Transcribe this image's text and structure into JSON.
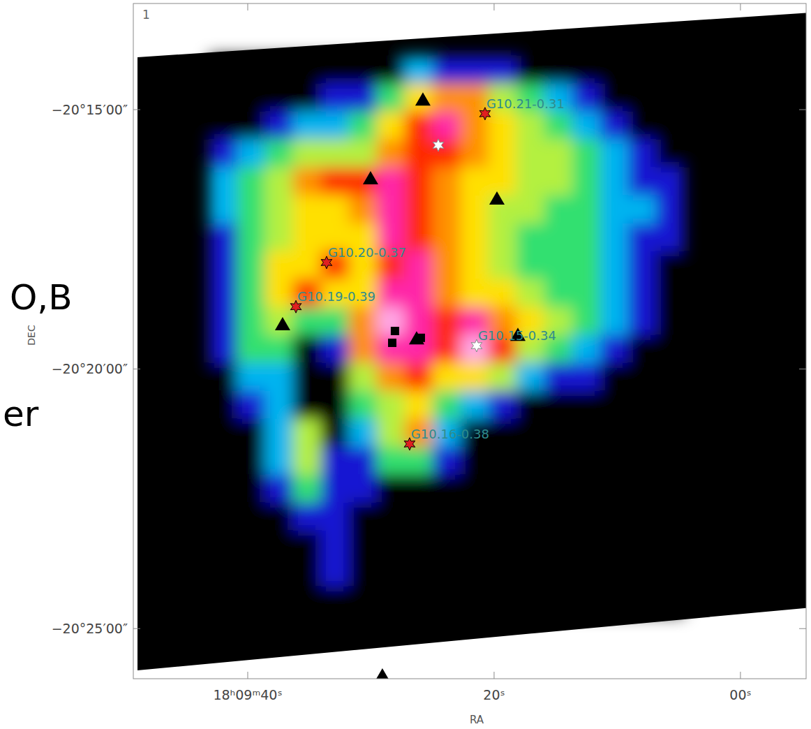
{
  "chart_data": {
    "type": "heatmap",
    "panel_label": "1",
    "slide_text": [
      "O,B",
      "er"
    ],
    "x_label": "RA",
    "y_label": "DEC",
    "xlim": [
      49.29,
      -5.33
    ],
    "xticks": [
      {
        "value": 40,
        "label": "18ʰ09ᵐ40ˢ"
      },
      {
        "value": 20,
        "label": "20ˢ"
      },
      {
        "value": 0,
        "label": "00ˢ"
      }
    ],
    "ylim": [
      -20.4328,
      -20.2159
    ],
    "yticks": [
      {
        "value": -20.25,
        "label": "−20°15′00″"
      },
      {
        "value": -20.3333,
        "label": "−20°20′00″"
      },
      {
        "value": -20.4167,
        "label": "−20°25′00″"
      }
    ],
    "cells": {
      "ra_edges": [
        43.12,
        40.85,
        38.58,
        36.32,
        34.05,
        31.78,
        29.52,
        27.25,
        24.99,
        22.72,
        20.45,
        18.19,
        15.92,
        13.65,
        11.39,
        9.12,
        6.86,
        4.59
      ],
      "dec_edges": [
        -20.2327,
        -20.2417,
        -20.2507,
        -20.2596,
        -20.2686,
        -20.2776,
        -20.2866,
        -20.2955,
        -20.3045,
        -20.3135,
        -20.3225,
        -20.3314,
        -20.3404,
        -20.3494,
        -20.3583,
        -20.3673,
        -20.3763,
        -20.3853,
        -20.3942,
        -20.4032,
        -20.4122
      ],
      "zlim": [
        0,
        9
      ],
      "values": [
        [
          0,
          0,
          0,
          0,
          0,
          0,
          0,
          2,
          1,
          1,
          1,
          0,
          0,
          0,
          0,
          0,
          0
        ],
        [
          0,
          0,
          0,
          0,
          1,
          1,
          3,
          5,
          6,
          6,
          4,
          3,
          2,
          1,
          0,
          0,
          0
        ],
        [
          0,
          0,
          1,
          2,
          2,
          3,
          5,
          7,
          8,
          6,
          5,
          4,
          3,
          2,
          1,
          0,
          0
        ],
        [
          1,
          2,
          3,
          4,
          4,
          4,
          6,
          7,
          7,
          6,
          5,
          4,
          4,
          3,
          2,
          1,
          0
        ],
        [
          2,
          3,
          4,
          6,
          7,
          7,
          8,
          7,
          6,
          5,
          5,
          4,
          4,
          3,
          2,
          1,
          1
        ],
        [
          2,
          3,
          4,
          5,
          5,
          6,
          8,
          7,
          6,
          5,
          4,
          4,
          3,
          3,
          2,
          2,
          1
        ],
        [
          1,
          3,
          4,
          5,
          5,
          5,
          8,
          7,
          6,
          5,
          4,
          3,
          3,
          3,
          2,
          1,
          1
        ],
        [
          1,
          3,
          5,
          5,
          7,
          5,
          7,
          8,
          6,
          5,
          4,
          3,
          3,
          3,
          2,
          1,
          0
        ],
        [
          1,
          3,
          5,
          7,
          5,
          5,
          8,
          8,
          6,
          5,
          5,
          4,
          3,
          3,
          2,
          1,
          0
        ],
        [
          1,
          3,
          4,
          3,
          3,
          6,
          9,
          8,
          7,
          8,
          6,
          5,
          4,
          3,
          2,
          1,
          0
        ],
        [
          1,
          3,
          3,
          0,
          1,
          6,
          8,
          8,
          7,
          9,
          7,
          4,
          3,
          2,
          1,
          0,
          0
        ],
        [
          0,
          2,
          2,
          0,
          0,
          4,
          6,
          7,
          5,
          5,
          4,
          2,
          1,
          1,
          0,
          0,
          0
        ],
        [
          0,
          1,
          2,
          0,
          0,
          3,
          4,
          5,
          3,
          2,
          1,
          0,
          0,
          0,
          0,
          0,
          0
        ],
        [
          0,
          0,
          2,
          4,
          0,
          2,
          4,
          6,
          2,
          0,
          0,
          0,
          0,
          0,
          0,
          0,
          0
        ],
        [
          0,
          0,
          2,
          4,
          1,
          1,
          3,
          3,
          1,
          0,
          0,
          0,
          0,
          0,
          0,
          0,
          0
        ],
        [
          0,
          0,
          1,
          3,
          1,
          1,
          0,
          0,
          0,
          0,
          0,
          0,
          0,
          0,
          0,
          0,
          0
        ],
        [
          0,
          0,
          0,
          1,
          1,
          0,
          0,
          0,
          0,
          0,
          0,
          0,
          0,
          0,
          0,
          0,
          0
        ],
        [
          0,
          0,
          0,
          0,
          1,
          0,
          0,
          0,
          0,
          0,
          0,
          0,
          0,
          0,
          0,
          0,
          0
        ],
        [
          0,
          0,
          0,
          0,
          1,
          0,
          0,
          0,
          0,
          0,
          0,
          0,
          0,
          0,
          0,
          0,
          0
        ],
        [
          0,
          0,
          0,
          0,
          0,
          0,
          0,
          0,
          0,
          0,
          0,
          0,
          0,
          0,
          0,
          0,
          0
        ]
      ]
    },
    "series": [
      {
        "marker": "star",
        "color": "#e02020",
        "x": [
          20.74,
          33.6,
          36.09,
          26.86
        ],
        "y": [
          -20.2513,
          -20.2991,
          -20.3133,
          -20.3574
        ],
        "labels": [
          "G10.21-0.31",
          "G10.20-0.37",
          "G10.19-0.39",
          "G10.16-0.38"
        ]
      },
      {
        "marker": "star",
        "color": "#ffffff",
        "x": [
          24.53,
          21.42
        ],
        "y": [
          -20.2614,
          -20.3258
        ],
        "labels": [
          null,
          "G10.15-0.34"
        ]
      },
      {
        "marker": "triangle",
        "color": "#000000",
        "x": [
          25.78,
          30.03,
          19.77,
          37.17,
          18.07,
          26.29,
          29.07
        ],
        "y": [
          -20.2469,
          -20.2722,
          -20.2787,
          -20.3191,
          -20.3225,
          -20.3236,
          -20.4319
        ]
      },
      {
        "marker": "square",
        "color": "#000000",
        "x": [
          28.05,
          28.27,
          25.95
        ],
        "y": [
          -20.3211,
          -20.3249,
          -20.3233
        ]
      }
    ]
  }
}
